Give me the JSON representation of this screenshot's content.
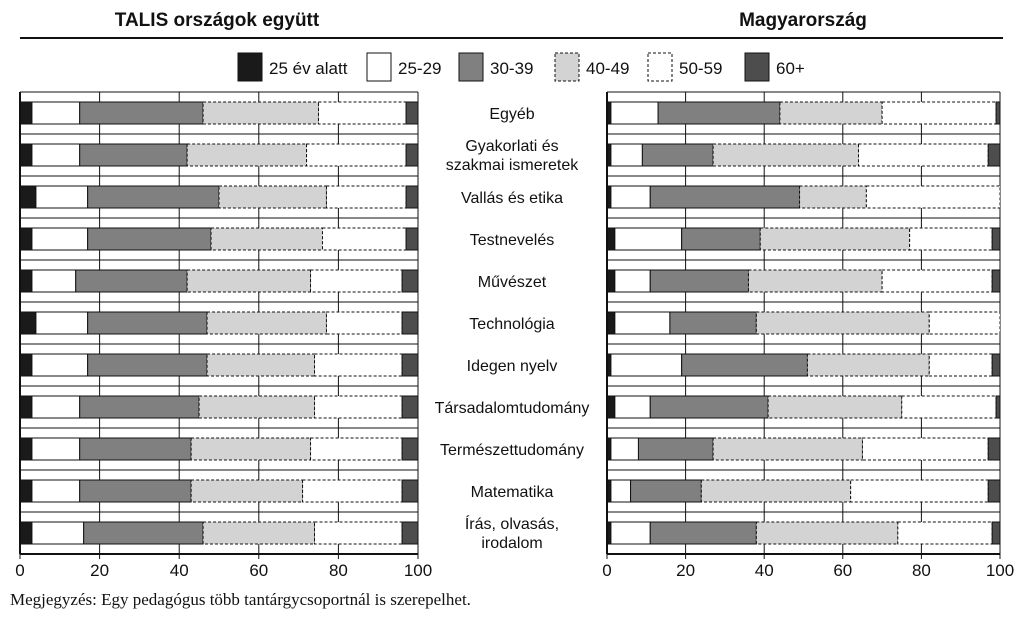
{
  "note": "Megjegyzés: Egy pedagógus több tantárgycsoportnál is szerepelhet.",
  "chart_data": {
    "type": "bar",
    "orientation": "horizontal",
    "stacked": true,
    "xlim": [
      0,
      100
    ],
    "x_ticks": [
      "0",
      "20",
      "40",
      "60",
      "80",
      "100"
    ],
    "grid": true,
    "legend": "top-center",
    "categories": [
      "Egyéb",
      "Gyakorlati és szakmai ismeretek",
      "Vallás és etika",
      "Testnevelés",
      "Művészet",
      "Technológia",
      "Idegen nyelv",
      "Társadalomtudomány",
      "Természettudomány",
      "Matematika",
      "Írás, olvasás, irodalom"
    ],
    "category_lines": [
      [
        "Egyéb"
      ],
      [
        "Gyakorlati és",
        "szakmai ismeretek"
      ],
      [
        "Vallás és etika"
      ],
      [
        "Testnevelés"
      ],
      [
        "Művészet"
      ],
      [
        "Technológia"
      ],
      [
        "Idegen nyelv"
      ],
      [
        "Társadalomtudomány"
      ],
      [
        "Természettudomány"
      ],
      [
        "Matematika"
      ],
      [
        "Írás, olvasás,",
        "irodalom"
      ]
    ],
    "series": [
      {
        "name": "25 év alatt",
        "fill": "#1a1a1a",
        "dashed": false
      },
      {
        "name": "25-29",
        "fill": "#ffffff",
        "dashed": false
      },
      {
        "name": "30-39",
        "fill": "#808080",
        "dashed": false
      },
      {
        "name": "40-49",
        "fill": "#d3d3d3",
        "dashed": true
      },
      {
        "name": "50-59",
        "fill": "#ffffff",
        "dashed": true
      },
      {
        "name": "60+",
        "fill": "#4d4d4d",
        "dashed": false
      }
    ],
    "panels": [
      {
        "title": "TALIS országok együtt",
        "values": [
          [
            3,
            12,
            31,
            29,
            22,
            3
          ],
          [
            3,
            12,
            27,
            30,
            25,
            3
          ],
          [
            4,
            13,
            33,
            27,
            20,
            3
          ],
          [
            3,
            14,
            31,
            28,
            21,
            3
          ],
          [
            3,
            11,
            28,
            31,
            23,
            4
          ],
          [
            4,
            13,
            30,
            30,
            19,
            4
          ],
          [
            3,
            14,
            30,
            27,
            22,
            4
          ],
          [
            3,
            12,
            30,
            29,
            22,
            4
          ],
          [
            3,
            12,
            28,
            30,
            23,
            4
          ],
          [
            3,
            12,
            28,
            28,
            25,
            4
          ],
          [
            3,
            13,
            30,
            28,
            22,
            4
          ]
        ]
      },
      {
        "title": "Magyarország",
        "values": [
          [
            1,
            12,
            31,
            26,
            29,
            1
          ],
          [
            1,
            8,
            18,
            37,
            33,
            3
          ],
          [
            1,
            10,
            38,
            17,
            34,
            0
          ],
          [
            2,
            17,
            20,
            38,
            21,
            2
          ],
          [
            2,
            9,
            25,
            34,
            28,
            2
          ],
          [
            2,
            14,
            22,
            44,
            18,
            0
          ],
          [
            1,
            18,
            32,
            31,
            16,
            2
          ],
          [
            2,
            9,
            30,
            34,
            24,
            1
          ],
          [
            1,
            7,
            19,
            38,
            32,
            3
          ],
          [
            1,
            5,
            18,
            38,
            35,
            3
          ],
          [
            1,
            10,
            27,
            36,
            24,
            2
          ]
        ]
      }
    ]
  }
}
